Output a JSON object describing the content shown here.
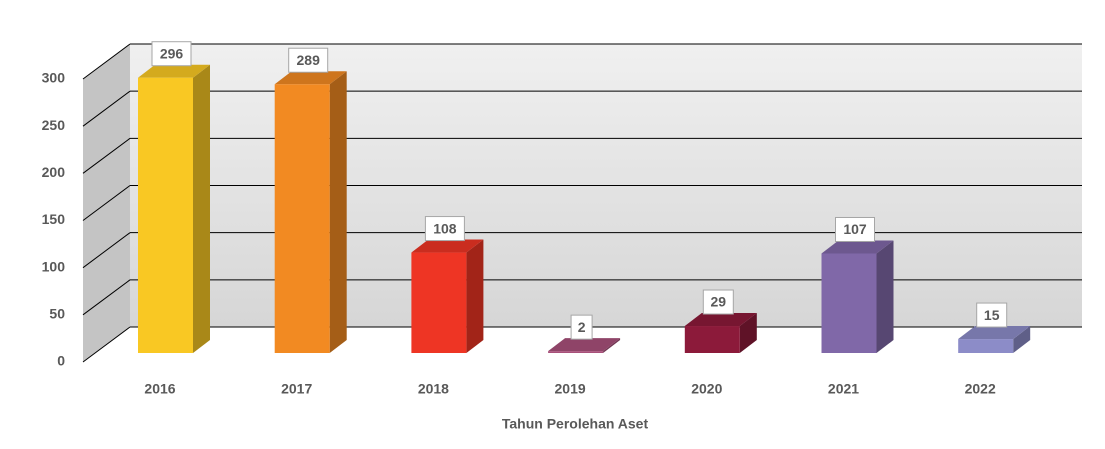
{
  "chart_data": {
    "type": "bar3d",
    "xlabel": "Tahun Perolehan Aset",
    "categories": [
      "2016",
      "2017",
      "2018",
      "2019",
      "2020",
      "2021",
      "2022"
    ],
    "values": [
      296,
      289,
      108,
      2,
      29,
      107,
      15
    ],
    "colors": [
      "#f9c823",
      "#f28a22",
      "#ee3524",
      "#a8507a",
      "#8c1a3a",
      "#8068a8",
      "#8c8cc8"
    ],
    "ylim": [
      0,
      300
    ],
    "yticks": [
      0,
      50,
      100,
      150,
      200,
      250,
      300
    ],
    "grid": true
  }
}
